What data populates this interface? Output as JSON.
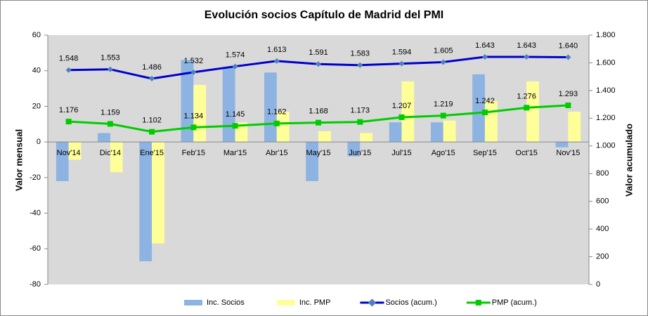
{
  "chart_data": {
    "type": "bar",
    "title": "Evolución socios Capítulo de Madrid del PMI",
    "y_label": "Valor mensual",
    "y2_label": "Valor acumulado",
    "categories": [
      "Nov'14",
      "Dic'14",
      "Ene'15",
      "Feb'15",
      "Mar'15",
      "Abr'15",
      "May'15",
      "Jun'15",
      "Jul'15",
      "Ago'15",
      "Sep'15",
      "Oct'15",
      "Nov'15"
    ],
    "series": [
      {
        "name": "Inc. Socios",
        "type": "bar",
        "color": "#8db3e2",
        "values": [
          -22,
          5,
          -67,
          46,
          42,
          39,
          -22,
          -8,
          11,
          11,
          38,
          0,
          -3
        ]
      },
      {
        "name": "Inc. PMP",
        "type": "bar",
        "color": "#ffff99",
        "values": [
          -10,
          -17,
          -57,
          32,
          11,
          17,
          6,
          5,
          34,
          12,
          23,
          34,
          17
        ]
      },
      {
        "name": "Socios (acum.)",
        "type": "line",
        "axis": "y2",
        "color": "#0000cc",
        "marker_color": "#4f81bd",
        "values": [
          1548,
          1553,
          1486,
          1532,
          1574,
          1613,
          1591,
          1583,
          1594,
          1605,
          1643,
          1643,
          1640
        ],
        "value_labels": [
          "1.548",
          "1.553",
          "1.486",
          "1.532",
          "1.574",
          "1.613",
          "1.591",
          "1.583",
          "1.594",
          "1.605",
          "1.643",
          "1.643",
          "1.640"
        ]
      },
      {
        "name": "PMP (acum.)",
        "type": "line",
        "axis": "y2",
        "color": "#00cc00",
        "marker_color": "#00cc00",
        "values": [
          1176,
          1159,
          1102,
          1134,
          1145,
          1162,
          1168,
          1173,
          1207,
          1219,
          1242,
          1276,
          1293
        ],
        "value_labels": [
          "1.176",
          "1.159",
          "1.102",
          "1.134",
          "1.145",
          "1.162",
          "1.168",
          "1.173",
          "1.207",
          "1.219",
          "1.242",
          "1.276",
          "1.293"
        ]
      }
    ],
    "ylim": [
      -80,
      60
    ],
    "yticks": [
      -80,
      -60,
      -40,
      -20,
      0,
      20,
      40,
      60
    ],
    "y2lim": [
      0,
      1800
    ],
    "y2ticks": [
      0,
      200,
      400,
      600,
      800,
      {
        "value": 1000,
        "label": "1.000"
      },
      {
        "value": 1200,
        "label": "1.200"
      },
      {
        "value": 1400,
        "label": "1.400"
      },
      {
        "value": 1600,
        "label": "1.600"
      },
      {
        "value": 1800,
        "label": "1.800"
      }
    ],
    "legend": "bottom"
  }
}
